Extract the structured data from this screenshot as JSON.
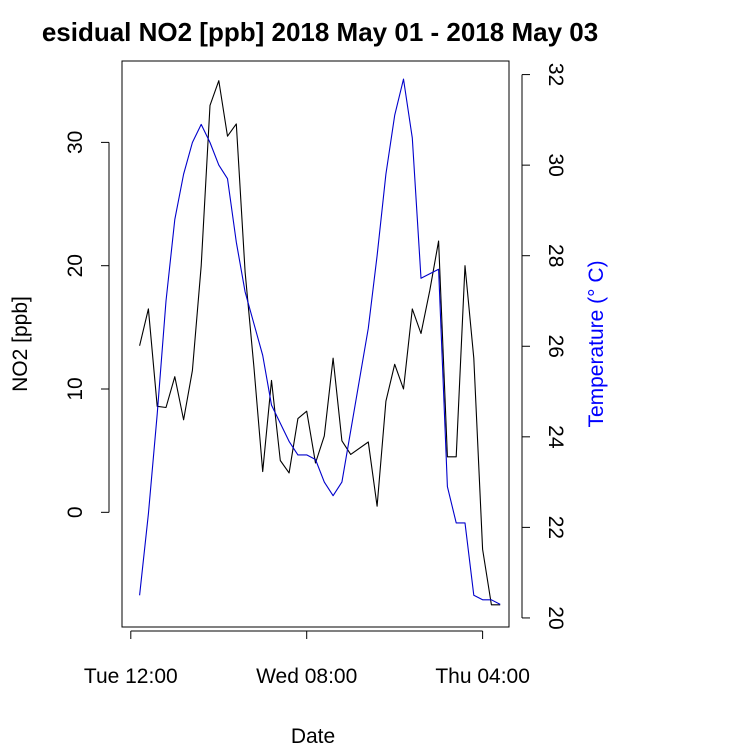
{
  "chart_data": {
    "type": "line",
    "title": "esidual NO2 [ppb] 2018 May 01 - 2018 May 03",
    "xlabel": "Date",
    "ylabel_left": "NO2 [ppb]",
    "ylabel_right": "Temperature (° C)",
    "right_axis_color": "#0000FF",
    "x_ticks": [
      {
        "x": 0,
        "label": "Tue 12:00"
      },
      {
        "x": 20,
        "label": "Wed 08:00"
      },
      {
        "x": 40,
        "label": "Thu 04:00"
      }
    ],
    "xlim": [
      -1,
      43
    ],
    "ylim_left": [
      -9.3,
      36.6
    ],
    "yticks_left": [
      0,
      10,
      20,
      30
    ],
    "ylim_right": [
      19.8,
      32.3
    ],
    "yticks_right": [
      20,
      22,
      24,
      26,
      28,
      30,
      32
    ],
    "grid": false,
    "series": [
      {
        "axis": "left",
        "color": "#000000",
        "x": [
          1,
          2,
          3,
          4,
          5,
          6,
          7,
          8,
          9,
          10,
          11,
          12,
          13,
          14,
          15,
          16,
          17,
          18,
          19,
          20,
          21,
          22,
          23,
          24,
          25,
          27,
          28,
          29,
          30,
          31,
          32,
          33,
          34,
          35,
          36,
          37,
          38,
          39,
          40,
          41,
          42
        ],
        "values": [
          13.5,
          16.5,
          8.6,
          8.5,
          11,
          7.5,
          11.5,
          20,
          33,
          35,
          30.5,
          31.5,
          19.5,
          11.8,
          3.3,
          10.7,
          4.2,
          3.2,
          7.6,
          8.2,
          4,
          6.2,
          12.5,
          5.8,
          4.7,
          5.7,
          0.5,
          9,
          12,
          10,
          16.5,
          14.5,
          18,
          22,
          4.5,
          4.5,
          20,
          12.5,
          -3,
          -7.5,
          -7.5
        ]
      },
      {
        "axis": "right",
        "color": "#0000CC",
        "x": [
          1,
          2,
          3,
          4,
          5,
          6,
          7,
          8,
          9,
          10,
          11,
          12,
          13,
          14,
          15,
          16,
          17,
          18,
          19,
          20,
          21,
          22,
          23,
          24,
          27,
          28,
          29,
          30,
          31,
          32,
          33,
          34,
          35,
          36,
          37,
          38,
          39,
          40,
          41,
          42
        ],
        "values": [
          20.5,
          22.3,
          24.5,
          27,
          28.8,
          29.8,
          30.5,
          30.9,
          30.5,
          30,
          29.7,
          28.3,
          27.2,
          26.5,
          25.8,
          24.7,
          24.3,
          23.9,
          23.6,
          23.6,
          23.5,
          23,
          22.7,
          23,
          26.4,
          28,
          29.8,
          31.1,
          31.9,
          30.6,
          27.5,
          27.6,
          27.7,
          22.9,
          22.1,
          22.1,
          20.5,
          20.4,
          20.4,
          20.3
        ]
      }
    ]
  }
}
